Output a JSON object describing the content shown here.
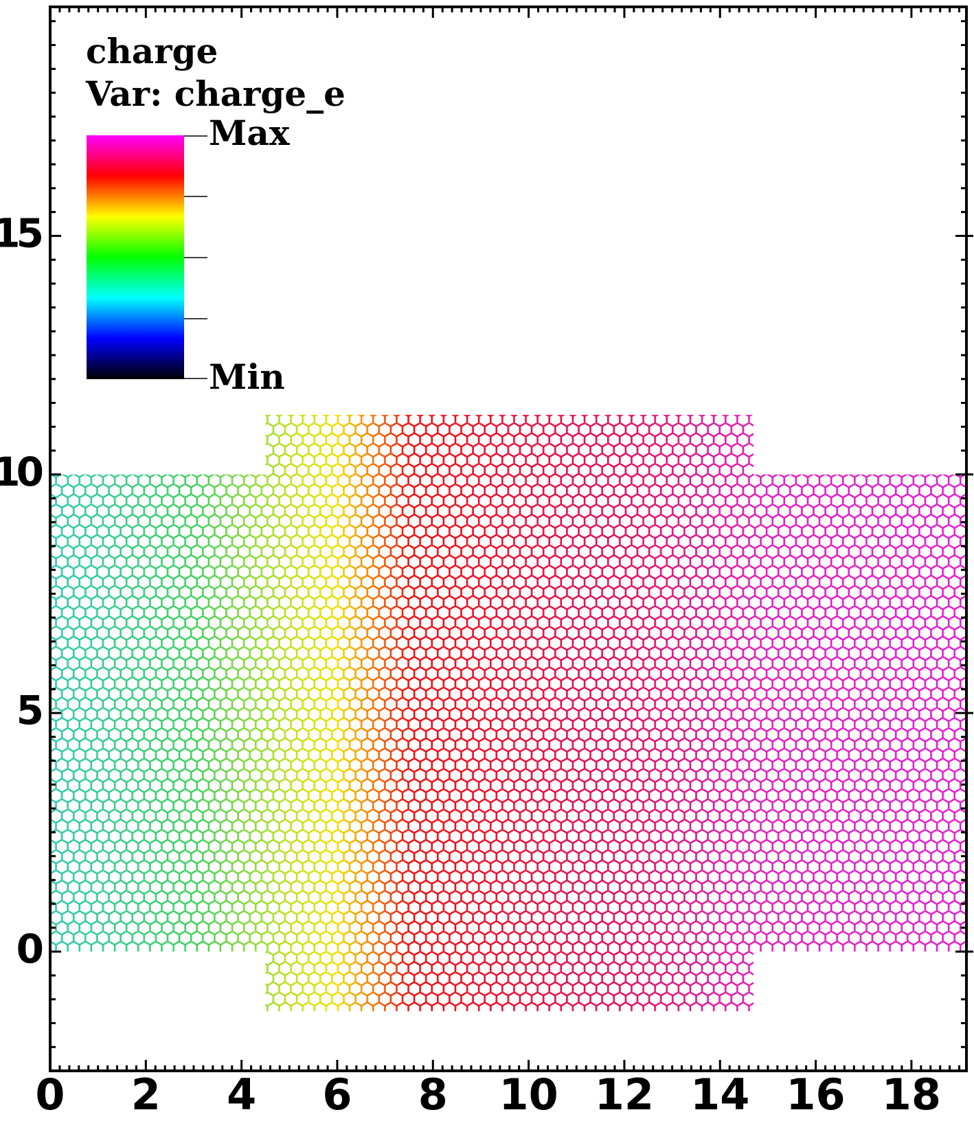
{
  "chart_data": {
    "type": "mesh",
    "legend_title": "charge",
    "legend_var": "Var: charge_e",
    "legend_max": "Max",
    "legend_min": "Min",
    "colormap": [
      "#ff00ff",
      "#ff0000",
      "#ffff00",
      "#00ff00",
      "#00ffff",
      "#0000ff",
      "#000000"
    ],
    "xlim": [
      0,
      19.15
    ],
    "ylim": [
      -2.5,
      19.8
    ],
    "xticks": [
      0,
      2,
      4,
      6,
      8,
      10,
      12,
      14,
      16,
      18
    ],
    "yticks": [
      0,
      5,
      10,
      15
    ],
    "xminorticks": [
      0.2,
      0.4,
      0.6,
      0.8,
      1,
      1.2,
      1.4,
      1.6,
      1.8,
      2.2,
      2.4,
      2.6,
      2.8,
      3,
      3.2,
      3.4,
      3.6,
      3.8,
      4.2,
      4.4,
      4.6,
      4.8,
      5,
      5.2,
      5.4,
      5.6,
      5.8,
      6.2,
      6.4,
      6.6,
      6.8,
      7,
      7.2,
      7.4,
      7.6,
      7.8,
      8.2,
      8.4,
      8.6,
      8.8,
      9,
      9.2,
      9.4,
      9.6,
      9.8,
      10.2,
      10.4,
      10.6,
      10.8,
      11,
      11.2,
      11.4,
      11.6,
      11.8,
      12.2,
      12.4,
      12.6,
      12.8,
      13,
      13.2,
      13.4,
      13.6,
      13.8,
      14.2,
      14.4,
      14.6,
      14.8,
      15,
      15.2,
      15.4,
      15.6,
      15.8,
      16.2,
      16.4,
      16.6,
      16.8,
      17,
      17.2,
      17.4,
      17.6,
      17.8,
      18.2,
      18.4,
      18.6,
      18.8,
      19
    ],
    "yminorticks": [
      -2,
      -1.5,
      -1,
      -0.5,
      0.5,
      1,
      1.5,
      2,
      2.5,
      3,
      3.5,
      4,
      4.5,
      5.5,
      6,
      6.5,
      7,
      7.5,
      8,
      8.5,
      9,
      9.5,
      10.5,
      11,
      11.5,
      12,
      12.5,
      13,
      13.5,
      14,
      14.5,
      15.5,
      16,
      16.5,
      17,
      17.5,
      18,
      18.5,
      19,
      19.5
    ],
    "regions": [
      {
        "xlim": [
          0,
          4.5
        ],
        "ylim": [
          0,
          10
        ]
      },
      {
        "xlim": [
          4.5,
          14.7
        ],
        "ylim": [
          -1.25,
          11.25
        ]
      },
      {
        "xlim": [
          14.7,
          19.15
        ],
        "ylim": [
          0,
          10
        ]
      }
    ],
    "mesh_colors": [
      {
        "x": 0,
        "color": "#30c8b0"
      },
      {
        "x": 3,
        "color": "#40d060"
      },
      {
        "x": 5,
        "color": "#c0e020"
      },
      {
        "x": 6,
        "color": "#f0e000"
      },
      {
        "x": 7.5,
        "color": "#f01010"
      },
      {
        "x": 12,
        "color": "#e01060"
      },
      {
        "x": 15,
        "color": "#e020c0"
      },
      {
        "x": 19.15,
        "color": "#e020d0"
      }
    ]
  }
}
